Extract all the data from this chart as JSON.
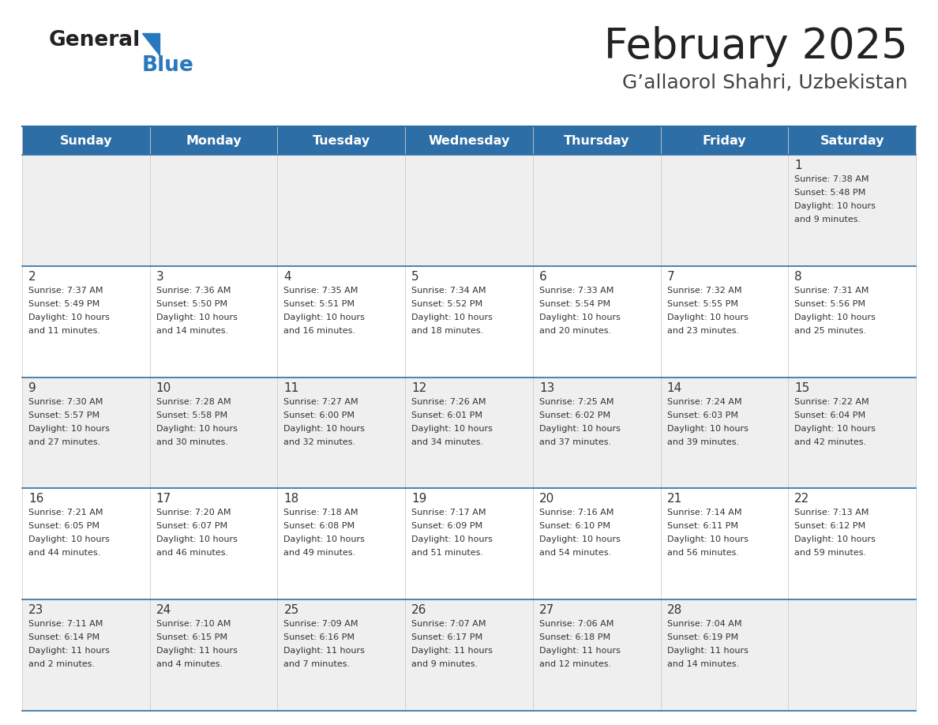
{
  "title": "February 2025",
  "subtitle": "G’allaorol Shahri, Uzbekistan",
  "header_bg": "#2E6EA6",
  "header_text_color": "#FFFFFF",
  "cell_bg_light": "#EFEFEF",
  "cell_bg_white": "#FFFFFF",
  "day_names": [
    "Sunday",
    "Monday",
    "Tuesday",
    "Wednesday",
    "Thursday",
    "Friday",
    "Saturday"
  ],
  "days": [
    {
      "day": 1,
      "col": 6,
      "row": 0,
      "sunrise": "7:38 AM",
      "sunset": "5:48 PM",
      "daylight_h": "10 hours",
      "daylight_m": "and 9 minutes."
    },
    {
      "day": 2,
      "col": 0,
      "row": 1,
      "sunrise": "7:37 AM",
      "sunset": "5:49 PM",
      "daylight_h": "10 hours",
      "daylight_m": "and 11 minutes."
    },
    {
      "day": 3,
      "col": 1,
      "row": 1,
      "sunrise": "7:36 AM",
      "sunset": "5:50 PM",
      "daylight_h": "10 hours",
      "daylight_m": "and 14 minutes."
    },
    {
      "day": 4,
      "col": 2,
      "row": 1,
      "sunrise": "7:35 AM",
      "sunset": "5:51 PM",
      "daylight_h": "10 hours",
      "daylight_m": "and 16 minutes."
    },
    {
      "day": 5,
      "col": 3,
      "row": 1,
      "sunrise": "7:34 AM",
      "sunset": "5:52 PM",
      "daylight_h": "10 hours",
      "daylight_m": "and 18 minutes."
    },
    {
      "day": 6,
      "col": 4,
      "row": 1,
      "sunrise": "7:33 AM",
      "sunset": "5:54 PM",
      "daylight_h": "10 hours",
      "daylight_m": "and 20 minutes."
    },
    {
      "day": 7,
      "col": 5,
      "row": 1,
      "sunrise": "7:32 AM",
      "sunset": "5:55 PM",
      "daylight_h": "10 hours",
      "daylight_m": "and 23 minutes."
    },
    {
      "day": 8,
      "col": 6,
      "row": 1,
      "sunrise": "7:31 AM",
      "sunset": "5:56 PM",
      "daylight_h": "10 hours",
      "daylight_m": "and 25 minutes."
    },
    {
      "day": 9,
      "col": 0,
      "row": 2,
      "sunrise": "7:30 AM",
      "sunset": "5:57 PM",
      "daylight_h": "10 hours",
      "daylight_m": "and 27 minutes."
    },
    {
      "day": 10,
      "col": 1,
      "row": 2,
      "sunrise": "7:28 AM",
      "sunset": "5:58 PM",
      "daylight_h": "10 hours",
      "daylight_m": "and 30 minutes."
    },
    {
      "day": 11,
      "col": 2,
      "row": 2,
      "sunrise": "7:27 AM",
      "sunset": "6:00 PM",
      "daylight_h": "10 hours",
      "daylight_m": "and 32 minutes."
    },
    {
      "day": 12,
      "col": 3,
      "row": 2,
      "sunrise": "7:26 AM",
      "sunset": "6:01 PM",
      "daylight_h": "10 hours",
      "daylight_m": "and 34 minutes."
    },
    {
      "day": 13,
      "col": 4,
      "row": 2,
      "sunrise": "7:25 AM",
      "sunset": "6:02 PM",
      "daylight_h": "10 hours",
      "daylight_m": "and 37 minutes."
    },
    {
      "day": 14,
      "col": 5,
      "row": 2,
      "sunrise": "7:24 AM",
      "sunset": "6:03 PM",
      "daylight_h": "10 hours",
      "daylight_m": "and 39 minutes."
    },
    {
      "day": 15,
      "col": 6,
      "row": 2,
      "sunrise": "7:22 AM",
      "sunset": "6:04 PM",
      "daylight_h": "10 hours",
      "daylight_m": "and 42 minutes."
    },
    {
      "day": 16,
      "col": 0,
      "row": 3,
      "sunrise": "7:21 AM",
      "sunset": "6:05 PM",
      "daylight_h": "10 hours",
      "daylight_m": "and 44 minutes."
    },
    {
      "day": 17,
      "col": 1,
      "row": 3,
      "sunrise": "7:20 AM",
      "sunset": "6:07 PM",
      "daylight_h": "10 hours",
      "daylight_m": "and 46 minutes."
    },
    {
      "day": 18,
      "col": 2,
      "row": 3,
      "sunrise": "7:18 AM",
      "sunset": "6:08 PM",
      "daylight_h": "10 hours",
      "daylight_m": "and 49 minutes."
    },
    {
      "day": 19,
      "col": 3,
      "row": 3,
      "sunrise": "7:17 AM",
      "sunset": "6:09 PM",
      "daylight_h": "10 hours",
      "daylight_m": "and 51 minutes."
    },
    {
      "day": 20,
      "col": 4,
      "row": 3,
      "sunrise": "7:16 AM",
      "sunset": "6:10 PM",
      "daylight_h": "10 hours",
      "daylight_m": "and 54 minutes."
    },
    {
      "day": 21,
      "col": 5,
      "row": 3,
      "sunrise": "7:14 AM",
      "sunset": "6:11 PM",
      "daylight_h": "10 hours",
      "daylight_m": "and 56 minutes."
    },
    {
      "day": 22,
      "col": 6,
      "row": 3,
      "sunrise": "7:13 AM",
      "sunset": "6:12 PM",
      "daylight_h": "10 hours",
      "daylight_m": "and 59 minutes."
    },
    {
      "day": 23,
      "col": 0,
      "row": 4,
      "sunrise": "7:11 AM",
      "sunset": "6:14 PM",
      "daylight_h": "11 hours",
      "daylight_m": "and 2 minutes."
    },
    {
      "day": 24,
      "col": 1,
      "row": 4,
      "sunrise": "7:10 AM",
      "sunset": "6:15 PM",
      "daylight_h": "11 hours",
      "daylight_m": "and 4 minutes."
    },
    {
      "day": 25,
      "col": 2,
      "row": 4,
      "sunrise": "7:09 AM",
      "sunset": "6:16 PM",
      "daylight_h": "11 hours",
      "daylight_m": "and 7 minutes."
    },
    {
      "day": 26,
      "col": 3,
      "row": 4,
      "sunrise": "7:07 AM",
      "sunset": "6:17 PM",
      "daylight_h": "11 hours",
      "daylight_m": "and 9 minutes."
    },
    {
      "day": 27,
      "col": 4,
      "row": 4,
      "sunrise": "7:06 AM",
      "sunset": "6:18 PM",
      "daylight_h": "11 hours",
      "daylight_m": "and 12 minutes."
    },
    {
      "day": 28,
      "col": 5,
      "row": 4,
      "sunrise": "7:04 AM",
      "sunset": "6:19 PM",
      "daylight_h": "11 hours",
      "daylight_m": "and 14 minutes."
    }
  ],
  "n_rows": 5,
  "n_cols": 7,
  "line_color": "#2E6EA6",
  "grid_line_color": "#AAAAAA",
  "text_color": "#333333",
  "title_color": "#222222",
  "subtitle_color": "#444444",
  "logo_general_color": "#222222",
  "logo_blue_color": "#2878BE",
  "logo_triangle_color": "#2878BE"
}
